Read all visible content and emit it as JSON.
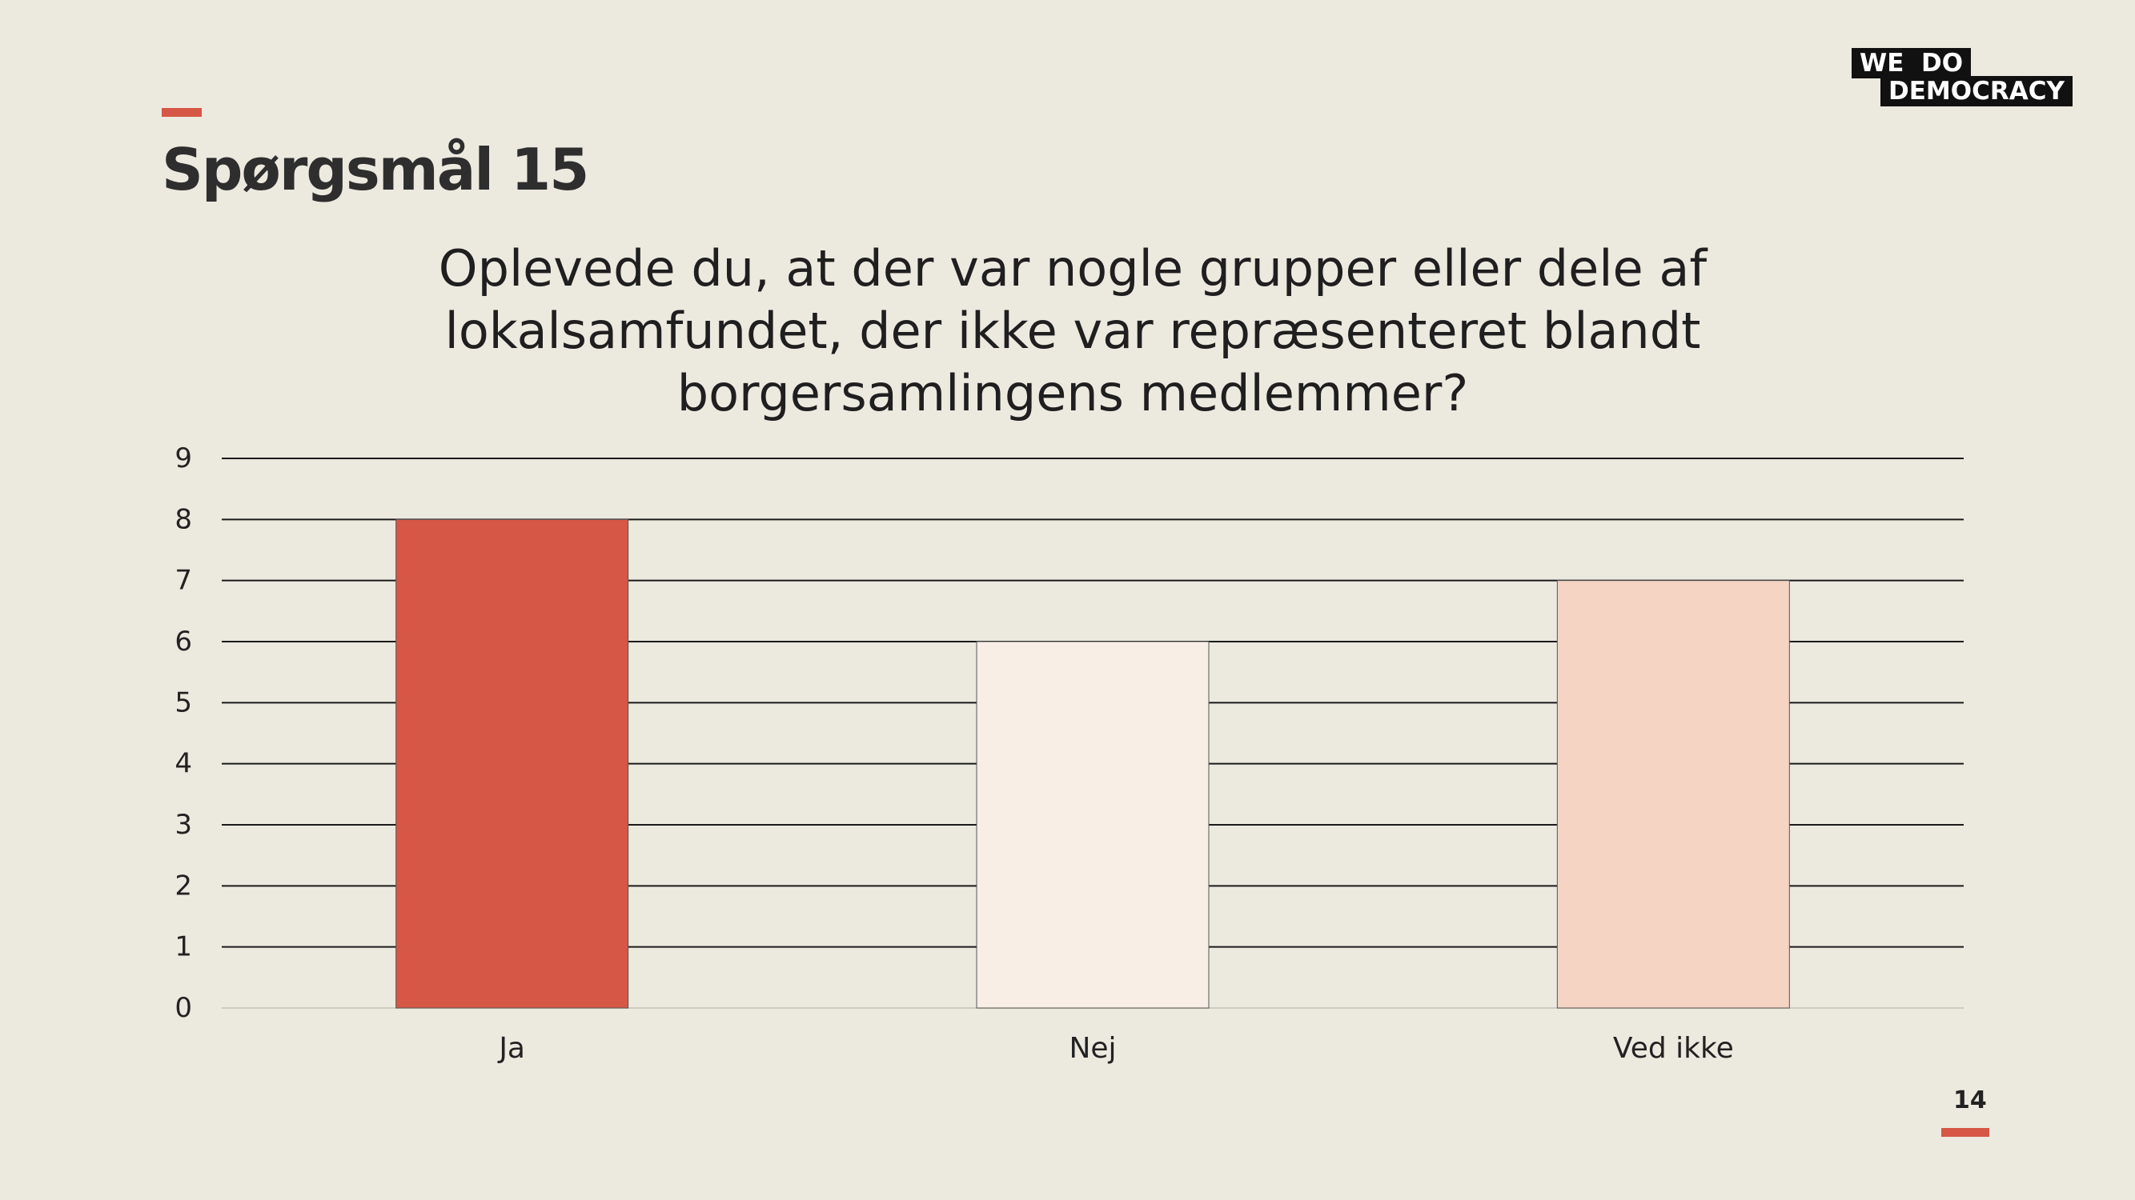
{
  "slide": {
    "heading": "Spørgsmål 15",
    "question": "Oplevede du, at der var nogle grupper eller dele af lokalsamfundet, der ikke var repræsenteret blandt borgersamlingens medlemmer?",
    "page_number": "14",
    "logo": {
      "line1": "WE  DO",
      "line2": "DEMOCRACY"
    },
    "colors": {
      "background": "#ECE9DF",
      "accent": "#D65745"
    }
  },
  "chart_data": {
    "type": "bar",
    "categories": [
      "Ja",
      "Nej",
      "Ved ikke"
    ],
    "values": [
      8,
      6,
      7
    ],
    "bar_colors": [
      "#D65745",
      "#F8EEE5",
      "#F5D4C4"
    ],
    "ylim": [
      0,
      9
    ],
    "yticks": [
      0,
      1,
      2,
      3,
      4,
      5,
      6,
      7,
      8,
      9
    ],
    "grid": true,
    "legend": "none"
  }
}
